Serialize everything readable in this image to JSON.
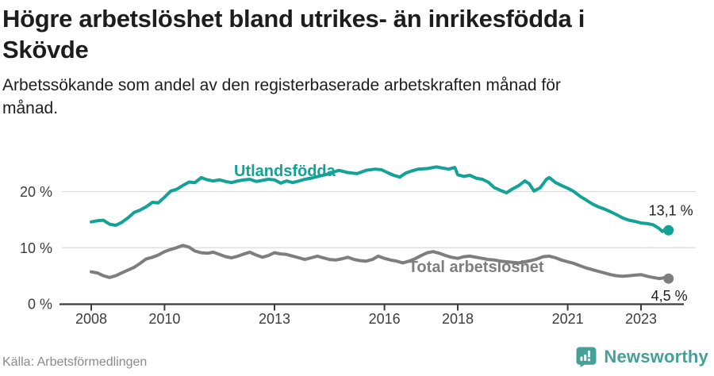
{
  "header": {
    "title": "Högre arbetslöshet bland utrikes- än inrikesfödda i Skövde",
    "title_lines": [
      "Högre arbetslöshet bland utrikes- än inrikesfödda i",
      "Skövde"
    ],
    "subtitle": "Arbetssökande som andel av den registerbaserade arbetskraften månad för månad.",
    "subtitle_lines": [
      "Arbetssökande som andel av den registerbaserade arbetskraften månad för",
      "månad."
    ]
  },
  "footer": {
    "source": "Källa: Arbetsförmedlingen",
    "brand": "Newsworthy",
    "brand_color": "#45a098",
    "brand_icon": "newsworthy-speech-bubble-bar-chart-icon"
  },
  "chart_data": {
    "type": "line",
    "x_ticks": [
      2008,
      2010,
      2013,
      2016,
      2018,
      2021,
      2023
    ],
    "y_ticks": [
      {
        "value": 0,
        "label": "0 %"
      },
      {
        "value": 10,
        "label": "10 %"
      },
      {
        "value": 20,
        "label": "20 %"
      }
    ],
    "xlim": [
      2007.2,
      2024.2
    ],
    "ylim": [
      0,
      28
    ],
    "grid": "horizontal",
    "legend_position": "inline-labels",
    "colors": {
      "axis": "#3b3b3b",
      "grid": "#dadada",
      "tick_text": "#3c3c3c",
      "value_text": "#1d1d1d"
    },
    "series": [
      {
        "id": "utlandsfodda",
        "name": "Utlandsfödda",
        "color": "#12a296",
        "end_label": "13,1 %",
        "end_value": 13.1,
        "label_anchor": {
          "year": 2013.28,
          "value": 22.76
        },
        "end_label_offset": [
          31,
          -19
        ],
        "points": [
          [
            2008.0,
            14.6
          ],
          [
            2008.17,
            14.8
          ],
          [
            2008.33,
            14.9
          ],
          [
            2008.5,
            14.2
          ],
          [
            2008.67,
            14.0
          ],
          [
            2008.83,
            14.5
          ],
          [
            2009.0,
            15.3
          ],
          [
            2009.17,
            16.3
          ],
          [
            2009.33,
            16.7
          ],
          [
            2009.5,
            17.3
          ],
          [
            2009.67,
            18.1
          ],
          [
            2009.83,
            18.0
          ],
          [
            2010.0,
            19.0
          ],
          [
            2010.17,
            20.1
          ],
          [
            2010.33,
            20.4
          ],
          [
            2010.5,
            21.1
          ],
          [
            2010.67,
            21.7
          ],
          [
            2010.83,
            21.6
          ],
          [
            2011.0,
            22.5
          ],
          [
            2011.17,
            22.1
          ],
          [
            2011.33,
            21.9
          ],
          [
            2011.5,
            22.1
          ],
          [
            2011.67,
            21.8
          ],
          [
            2011.83,
            21.6
          ],
          [
            2012.0,
            21.9
          ],
          [
            2012.17,
            22.1
          ],
          [
            2012.33,
            22.2
          ],
          [
            2012.5,
            21.8
          ],
          [
            2012.67,
            22.0
          ],
          [
            2012.83,
            22.2
          ],
          [
            2013.0,
            22.1
          ],
          [
            2013.17,
            21.5
          ],
          [
            2013.33,
            21.9
          ],
          [
            2013.5,
            21.6
          ],
          [
            2013.67,
            21.9
          ],
          [
            2013.83,
            22.2
          ],
          [
            2014.0,
            22.4
          ],
          [
            2014.25,
            22.8
          ],
          [
            2014.5,
            23.2
          ],
          [
            2014.75,
            23.8
          ],
          [
            2015.0,
            23.4
          ],
          [
            2015.25,
            23.2
          ],
          [
            2015.5,
            23.8
          ],
          [
            2015.75,
            24.0
          ],
          [
            2015.92,
            23.9
          ],
          [
            2016.08,
            23.4
          ],
          [
            2016.25,
            22.9
          ],
          [
            2016.42,
            22.6
          ],
          [
            2016.58,
            23.3
          ],
          [
            2016.75,
            23.7
          ],
          [
            2016.92,
            24.0
          ],
          [
            2017.17,
            24.1
          ],
          [
            2017.42,
            24.4
          ],
          [
            2017.58,
            24.2
          ],
          [
            2017.75,
            24.0
          ],
          [
            2017.92,
            24.3
          ],
          [
            2018.0,
            23.0
          ],
          [
            2018.17,
            22.7
          ],
          [
            2018.33,
            22.9
          ],
          [
            2018.5,
            22.4
          ],
          [
            2018.67,
            22.2
          ],
          [
            2018.83,
            21.7
          ],
          [
            2019.0,
            20.7
          ],
          [
            2019.17,
            20.2
          ],
          [
            2019.33,
            19.8
          ],
          [
            2019.5,
            20.5
          ],
          [
            2019.67,
            21.1
          ],
          [
            2019.83,
            21.9
          ],
          [
            2019.95,
            21.4
          ],
          [
            2020.08,
            20.1
          ],
          [
            2020.25,
            20.7
          ],
          [
            2020.42,
            22.2
          ],
          [
            2020.5,
            22.5
          ],
          [
            2020.67,
            21.6
          ],
          [
            2020.83,
            21.1
          ],
          [
            2021.0,
            20.6
          ],
          [
            2021.17,
            20.0
          ],
          [
            2021.33,
            19.2
          ],
          [
            2021.5,
            18.5
          ],
          [
            2021.67,
            17.8
          ],
          [
            2021.83,
            17.3
          ],
          [
            2022.0,
            16.9
          ],
          [
            2022.17,
            16.4
          ],
          [
            2022.33,
            15.9
          ],
          [
            2022.5,
            15.3
          ],
          [
            2022.67,
            14.9
          ],
          [
            2022.83,
            14.7
          ],
          [
            2023.0,
            14.4
          ],
          [
            2023.17,
            14.3
          ],
          [
            2023.33,
            14.1
          ],
          [
            2023.5,
            13.4
          ],
          [
            2023.58,
            12.9
          ],
          [
            2023.67,
            13.3
          ],
          [
            2023.75,
            13.1
          ]
        ]
      },
      {
        "id": "total",
        "name": "Total arbetslöshet",
        "color": "#7e7e7e",
        "end_label": "4,5 %",
        "end_value": 4.5,
        "label_anchor": {
          "year": 2018.5,
          "value": 5.66
        },
        "end_label_offset": [
          24,
          28
        ],
        "points": [
          [
            2008.0,
            5.7
          ],
          [
            2008.17,
            5.5
          ],
          [
            2008.33,
            5.0
          ],
          [
            2008.5,
            4.7
          ],
          [
            2008.67,
            5.0
          ],
          [
            2008.83,
            5.5
          ],
          [
            2009.0,
            6.0
          ],
          [
            2009.17,
            6.5
          ],
          [
            2009.33,
            7.2
          ],
          [
            2009.5,
            8.0
          ],
          [
            2009.67,
            8.3
          ],
          [
            2009.83,
            8.7
          ],
          [
            2010.0,
            9.3
          ],
          [
            2010.17,
            9.7
          ],
          [
            2010.33,
            10.0
          ],
          [
            2010.5,
            10.4
          ],
          [
            2010.67,
            10.1
          ],
          [
            2010.83,
            9.4
          ],
          [
            2011.0,
            9.1
          ],
          [
            2011.17,
            9.0
          ],
          [
            2011.33,
            9.2
          ],
          [
            2011.5,
            8.8
          ],
          [
            2011.67,
            8.4
          ],
          [
            2011.83,
            8.2
          ],
          [
            2012.0,
            8.5
          ],
          [
            2012.17,
            8.9
          ],
          [
            2012.33,
            9.2
          ],
          [
            2012.5,
            8.7
          ],
          [
            2012.67,
            8.3
          ],
          [
            2012.83,
            8.6
          ],
          [
            2013.0,
            9.1
          ],
          [
            2013.17,
            8.9
          ],
          [
            2013.33,
            8.8
          ],
          [
            2013.5,
            8.5
          ],
          [
            2013.67,
            8.2
          ],
          [
            2013.83,
            7.9
          ],
          [
            2014.0,
            8.2
          ],
          [
            2014.17,
            8.5
          ],
          [
            2014.33,
            8.2
          ],
          [
            2014.5,
            7.9
          ],
          [
            2014.67,
            7.8
          ],
          [
            2014.83,
            8.0
          ],
          [
            2015.0,
            8.3
          ],
          [
            2015.17,
            7.9
          ],
          [
            2015.33,
            7.7
          ],
          [
            2015.5,
            7.6
          ],
          [
            2015.67,
            7.9
          ],
          [
            2015.83,
            8.5
          ],
          [
            2016.0,
            8.1
          ],
          [
            2016.17,
            7.8
          ],
          [
            2016.33,
            7.6
          ],
          [
            2016.5,
            7.3
          ],
          [
            2016.67,
            7.6
          ],
          [
            2016.83,
            8.0
          ],
          [
            2017.0,
            8.6
          ],
          [
            2017.17,
            9.1
          ],
          [
            2017.33,
            9.3
          ],
          [
            2017.5,
            9.0
          ],
          [
            2017.67,
            8.6
          ],
          [
            2017.83,
            8.3
          ],
          [
            2018.0,
            8.1
          ],
          [
            2018.17,
            8.4
          ],
          [
            2018.33,
            8.5
          ],
          [
            2018.5,
            8.3
          ],
          [
            2018.67,
            8.1
          ],
          [
            2018.83,
            7.9
          ],
          [
            2019.0,
            7.8
          ],
          [
            2019.17,
            7.6
          ],
          [
            2019.33,
            7.5
          ],
          [
            2019.5,
            7.4
          ],
          [
            2019.67,
            7.3
          ],
          [
            2019.83,
            7.5
          ],
          [
            2020.0,
            7.7
          ],
          [
            2020.17,
            8.0
          ],
          [
            2020.33,
            8.4
          ],
          [
            2020.5,
            8.5
          ],
          [
            2020.67,
            8.2
          ],
          [
            2020.83,
            7.8
          ],
          [
            2021.0,
            7.5
          ],
          [
            2021.17,
            7.2
          ],
          [
            2021.33,
            6.8
          ],
          [
            2021.5,
            6.4
          ],
          [
            2021.67,
            6.1
          ],
          [
            2021.83,
            5.8
          ],
          [
            2022.0,
            5.5
          ],
          [
            2022.17,
            5.2
          ],
          [
            2022.33,
            5.0
          ],
          [
            2022.5,
            4.9
          ],
          [
            2022.67,
            5.0
          ],
          [
            2022.83,
            5.1
          ],
          [
            2023.0,
            5.2
          ],
          [
            2023.17,
            4.9
          ],
          [
            2023.33,
            4.7
          ],
          [
            2023.5,
            4.5
          ],
          [
            2023.67,
            4.7
          ],
          [
            2023.75,
            4.5
          ]
        ]
      }
    ]
  }
}
